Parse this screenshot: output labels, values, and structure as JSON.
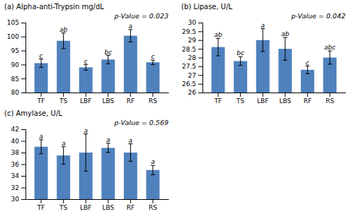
{
  "chart_data": [
    {
      "type": "bar",
      "title": "(a) Alpha-anti-Trypsin mg/dL",
      "annotations": [
        "p-Value = 0.023"
      ],
      "categories": [
        "TF",
        "TS",
        "LBF",
        "LBS",
        "RF",
        "RS"
      ],
      "values": [
        90.5,
        98.5,
        89.0,
        91.8,
        100.3,
        90.8
      ],
      "errors": [
        1.5,
        2.8,
        1.0,
        1.5,
        2.2,
        0.8
      ],
      "letters": [
        "c",
        "ab",
        "c",
        "bc",
        "a",
        "c"
      ],
      "color": "#4f81bd",
      "ylim": [
        80,
        105
      ],
      "yticks": [
        80,
        85,
        90,
        95,
        100,
        105
      ]
    },
    {
      "type": "bar",
      "title": "(b) Lipase, U/L",
      "annotations": [
        "p-Value = 0.042"
      ],
      "categories": [
        "TF",
        "TS",
        "LBF",
        "LBS",
        "RF",
        "RS"
      ],
      "values": [
        28.6,
        27.8,
        29.0,
        28.5,
        27.3,
        28.0
      ],
      "errors": [
        0.5,
        0.25,
        0.65,
        0.65,
        0.22,
        0.38
      ],
      "letters": [
        "ab",
        "bc",
        "a",
        "ab",
        "c",
        "abc"
      ],
      "color": "#4f81bd",
      "ylim": [
        26,
        30
      ],
      "yticks": [
        26,
        26.5,
        27,
        27.5,
        28,
        28.5,
        29,
        29.5,
        30
      ]
    },
    {
      "type": "bar",
      "title": "(c) Amylase, U/L",
      "annotations": [
        "p-Value = 0.569"
      ],
      "categories": [
        "TF",
        "TS",
        "LBF",
        "LBS",
        "RF",
        "RS"
      ],
      "values": [
        39.0,
        37.5,
        38.0,
        38.8,
        38.0,
        35.0
      ],
      "errors": [
        1.2,
        1.5,
        3.2,
        0.8,
        1.5,
        0.8
      ],
      "letters": [
        "a",
        "a",
        "a",
        "a",
        "a",
        "a"
      ],
      "color": "#4f81bd",
      "ylim": [
        30,
        42
      ],
      "yticks": [
        30,
        32,
        34,
        36,
        38,
        40,
        42
      ]
    }
  ]
}
